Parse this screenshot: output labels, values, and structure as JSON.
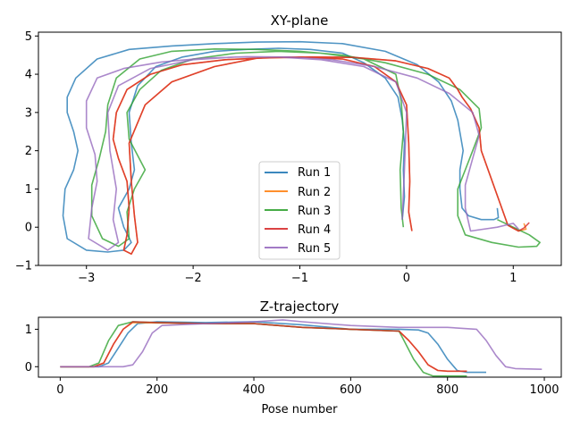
{
  "chart_data": [
    {
      "type": "line",
      "title": "XY-plane",
      "xlabel": "",
      "ylabel": "",
      "xlim": [
        -3.45,
        1.45
      ],
      "ylim": [
        -1.0,
        5.1
      ],
      "xticks": [
        -3,
        -2,
        -1,
        0,
        1
      ],
      "yticks": [
        -1,
        0,
        1,
        2,
        3,
        4,
        5
      ],
      "xtick_labels": [
        "−3",
        "−2",
        "−1",
        "0",
        "1"
      ],
      "ytick_labels": [
        "−1",
        "0",
        "1",
        "2",
        "3",
        "4",
        "5"
      ],
      "grid": false,
      "legend_position": "lower-center",
      "series": [
        {
          "name": "Run 1",
          "color": "#1f77b4",
          "x": [
            0.85,
            0.86,
            0.82,
            0.7,
            0.58,
            0.52,
            0.5,
            0.5,
            0.53,
            0.48,
            0.42,
            0.3,
            0.1,
            -0.2,
            -0.6,
            -1.0,
            -1.4,
            -1.8,
            -2.2,
            -2.6,
            -2.9,
            -3.1,
            -3.18,
            -3.18,
            -3.12,
            -3.08,
            -3.12,
            -3.2,
            -3.22,
            -3.18,
            -3.0,
            -2.8,
            -2.65,
            -2.58,
            -2.65,
            -2.7,
            -2.6,
            -2.55,
            -2.58,
            -2.6,
            -2.52,
            -2.35,
            -2.1,
            -1.8,
            -1.5,
            -1.2,
            -0.9,
            -0.6,
            -0.4,
            -0.2,
            -0.08,
            -0.04,
            -0.02,
            -0.03,
            -0.02,
            -0.04
          ],
          "y": [
            0.5,
            0.25,
            0.2,
            0.2,
            0.3,
            0.5,
            1.0,
            1.5,
            2.0,
            2.8,
            3.3,
            3.8,
            4.25,
            4.6,
            4.8,
            4.85,
            4.84,
            4.8,
            4.74,
            4.65,
            4.4,
            3.9,
            3.4,
            3.0,
            2.5,
            2.0,
            1.5,
            1.0,
            0.3,
            -0.3,
            -0.6,
            -0.65,
            -0.6,
            -0.4,
            0.0,
            0.5,
            1.0,
            1.5,
            2.2,
            3.0,
            3.7,
            4.2,
            4.45,
            4.6,
            4.65,
            4.68,
            4.65,
            4.55,
            4.3,
            3.9,
            3.4,
            2.8,
            2.2,
            1.5,
            0.8,
            0.2
          ]
        },
        {
          "name": "Run 2",
          "color": "#ff7f0e",
          "x": [
            1.1,
            1.12,
            1.05,
            0.95,
            0.7,
            0.68,
            0.6,
            0.52,
            0.48,
            0.4,
            0.2,
            -0.1,
            -0.5,
            -0.9,
            -1.3,
            -1.7,
            -2.1,
            -2.4,
            -2.62,
            -2.72,
            -2.75,
            -2.7,
            -2.62,
            -2.6,
            -2.62,
            -2.65,
            -2.58,
            -2.52,
            -2.55,
            -2.58,
            -2.6,
            -2.45,
            -2.2,
            -1.8,
            -1.4,
            -1.0,
            -0.6,
            -0.3,
            -0.1,
            0.0,
            0.02,
            0.03,
            0.02,
            0.05
          ],
          "y": [
            0.1,
            -0.05,
            -0.1,
            0.05,
            2.0,
            2.6,
            3.1,
            3.4,
            3.6,
            3.9,
            4.15,
            4.35,
            4.44,
            4.45,
            4.43,
            4.38,
            4.25,
            4.0,
            3.6,
            3.0,
            2.3,
            1.8,
            1.2,
            0.5,
            -0.2,
            -0.6,
            -0.7,
            -0.4,
            0.3,
            1.2,
            2.2,
            3.2,
            3.8,
            4.2,
            4.42,
            4.45,
            4.4,
            4.2,
            3.8,
            3.2,
            2.2,
            1.2,
            0.4,
            -0.1
          ]
        },
        {
          "name": "Run 3",
          "color": "#2ca02c",
          "x": [
            0.85,
            1.0,
            1.15,
            1.25,
            1.22,
            1.05,
            0.8,
            0.55,
            0.48,
            0.48,
            0.55,
            0.62,
            0.7,
            0.68,
            0.5,
            0.2,
            -0.2,
            -0.6,
            -1.0,
            -1.4,
            -1.8,
            -2.2,
            -2.5,
            -2.72,
            -2.8,
            -2.82,
            -2.88,
            -2.95,
            -2.95,
            -2.85,
            -2.7,
            -2.6,
            -2.62,
            -2.55,
            -2.45,
            -2.6,
            -2.62,
            -2.5,
            -2.3,
            -2.0,
            -1.6,
            -1.2,
            -0.8,
            -0.4,
            -0.1,
            -0.05,
            -0.03,
            -0.06,
            -0.05,
            -0.03
          ],
          "y": [
            0.2,
            0.0,
            -0.2,
            -0.4,
            -0.5,
            -0.52,
            -0.4,
            -0.2,
            0.3,
            1.0,
            1.5,
            2.0,
            2.6,
            3.1,
            3.6,
            4.0,
            4.3,
            4.5,
            4.6,
            4.65,
            4.66,
            4.6,
            4.4,
            3.9,
            3.2,
            2.5,
            1.8,
            1.1,
            0.3,
            -0.3,
            -0.5,
            -0.3,
            0.4,
            1.0,
            1.5,
            2.3,
            3.0,
            3.6,
            4.1,
            4.4,
            4.55,
            4.6,
            4.55,
            4.4,
            4.0,
            3.3,
            2.5,
            1.5,
            0.5,
            0.0
          ]
        },
        {
          "name": "Run 4",
          "color": "#d62728",
          "x": [
            1.15,
            1.1,
            1.05,
            0.95,
            0.7,
            0.68,
            0.6,
            0.52,
            0.48,
            0.4,
            0.2,
            -0.1,
            -0.5,
            -0.9,
            -1.3,
            -1.7,
            -2.1,
            -2.4,
            -2.62,
            -2.72,
            -2.75,
            -2.7,
            -2.62,
            -2.6,
            -2.62,
            -2.65,
            -2.58,
            -2.52,
            -2.55,
            -2.58,
            -2.6,
            -2.45,
            -2.2,
            -1.8,
            -1.4,
            -1.0,
            -0.6,
            -0.3,
            -0.1,
            0.0,
            0.02,
            0.03,
            0.02,
            0.05
          ],
          "y": [
            0.12,
            -0.02,
            -0.1,
            0.05,
            2.0,
            2.6,
            3.1,
            3.4,
            3.6,
            3.9,
            4.15,
            4.35,
            4.44,
            4.45,
            4.43,
            4.38,
            4.25,
            4.0,
            3.6,
            3.0,
            2.3,
            1.8,
            1.2,
            0.5,
            -0.2,
            -0.6,
            -0.7,
            -0.4,
            0.3,
            1.2,
            2.2,
            3.2,
            3.8,
            4.2,
            4.42,
            4.45,
            4.4,
            4.2,
            3.8,
            3.2,
            2.2,
            1.2,
            0.4,
            -0.1
          ]
        },
        {
          "name": "Run 5",
          "color": "#9467bd",
          "x": [
            1.05,
            1.0,
            0.85,
            0.6,
            0.55,
            0.55,
            0.62,
            0.68,
            0.62,
            0.4,
            0.1,
            -0.3,
            -0.7,
            -1.1,
            -1.5,
            -1.9,
            -2.3,
            -2.65,
            -2.9,
            -3.0,
            -3.0,
            -2.92,
            -2.9,
            -2.95,
            -2.98,
            -2.8,
            -2.7,
            -2.75,
            -2.72,
            -2.78,
            -2.8,
            -2.7,
            -2.4,
            -2.0,
            -1.6,
            -1.2,
            -0.8,
            -0.4,
            -0.1,
            0.0,
            -0.02,
            -0.04
          ],
          "y": [
            -0.05,
            0.1,
            0.0,
            -0.1,
            0.5,
            1.1,
            1.8,
            2.4,
            3.0,
            3.5,
            3.9,
            4.2,
            4.38,
            4.45,
            4.46,
            4.42,
            4.32,
            4.15,
            3.9,
            3.3,
            2.6,
            1.9,
            1.2,
            0.5,
            -0.3,
            -0.6,
            -0.4,
            0.2,
            1.0,
            2.0,
            3.0,
            3.7,
            4.15,
            4.38,
            4.45,
            4.45,
            4.38,
            4.2,
            3.8,
            3.0,
            1.5,
            0.2
          ]
        }
      ]
    },
    {
      "type": "line",
      "title": "Z-trajectory",
      "xlabel": "Pose number",
      "ylabel": "",
      "xlim": [
        -45,
        1035
      ],
      "ylim": [
        -0.28,
        1.32
      ],
      "xticks": [
        0,
        200,
        400,
        600,
        800,
        1000
      ],
      "yticks": [
        0,
        1
      ],
      "xtick_labels": [
        "0",
        "200",
        "400",
        "600",
        "800",
        "1000"
      ],
      "ytick_labels": [
        "0",
        "1"
      ],
      "grid": false,
      "series": [
        {
          "name": "Run 1",
          "color": "#1f77b4",
          "x": [
            0,
            80,
            100,
            120,
            140,
            160,
            200,
            300,
            400,
            500,
            600,
            700,
            740,
            760,
            780,
            800,
            820,
            840,
            880
          ],
          "y": [
            0,
            0,
            0.1,
            0.5,
            0.9,
            1.15,
            1.2,
            1.18,
            1.2,
            1.12,
            1.0,
            1.0,
            0.98,
            0.9,
            0.6,
            0.2,
            -0.1,
            -0.15,
            -0.15
          ]
        },
        {
          "name": "Run 2",
          "color": "#ff7f0e",
          "x": [
            0,
            70,
            90,
            110,
            130,
            150,
            200,
            300,
            400,
            500,
            600,
            700,
            720,
            740,
            760,
            780,
            800,
            840
          ],
          "y": [
            0,
            0,
            0.1,
            0.6,
            1.0,
            1.18,
            1.17,
            1.15,
            1.15,
            1.05,
            1.0,
            0.95,
            0.7,
            0.4,
            0.05,
            -0.1,
            -0.12,
            -0.12
          ]
        },
        {
          "name": "Run 3",
          "color": "#2ca02c",
          "x": [
            0,
            60,
            80,
            100,
            120,
            150,
            200,
            300,
            400,
            500,
            600,
            700,
            710,
            730,
            750,
            770,
            800,
            840
          ],
          "y": [
            0,
            0,
            0.1,
            0.7,
            1.1,
            1.2,
            1.18,
            1.15,
            1.15,
            1.05,
            1.0,
            0.95,
            0.7,
            0.2,
            -0.15,
            -0.25,
            -0.25,
            -0.25
          ]
        },
        {
          "name": "Run 4",
          "color": "#d62728",
          "x": [
            0,
            70,
            90,
            110,
            130,
            150,
            200,
            300,
            400,
            500,
            600,
            700,
            720,
            740,
            760,
            780,
            800,
            840
          ],
          "y": [
            0,
            0,
            0.1,
            0.6,
            1.0,
            1.2,
            1.18,
            1.15,
            1.15,
            1.05,
            1.0,
            0.95,
            0.7,
            0.4,
            0.05,
            -0.1,
            -0.12,
            -0.12
          ]
        },
        {
          "name": "Run 5",
          "color": "#9467bd",
          "x": [
            0,
            130,
            150,
            170,
            190,
            210,
            300,
            400,
            460,
            500,
            600,
            700,
            800,
            860,
            880,
            900,
            920,
            940,
            995
          ],
          "y": [
            0,
            0,
            0.05,
            0.4,
            0.9,
            1.1,
            1.15,
            1.2,
            1.25,
            1.2,
            1.1,
            1.05,
            1.05,
            1.0,
            0.7,
            0.3,
            0.0,
            -0.05,
            -0.07
          ]
        }
      ]
    }
  ]
}
